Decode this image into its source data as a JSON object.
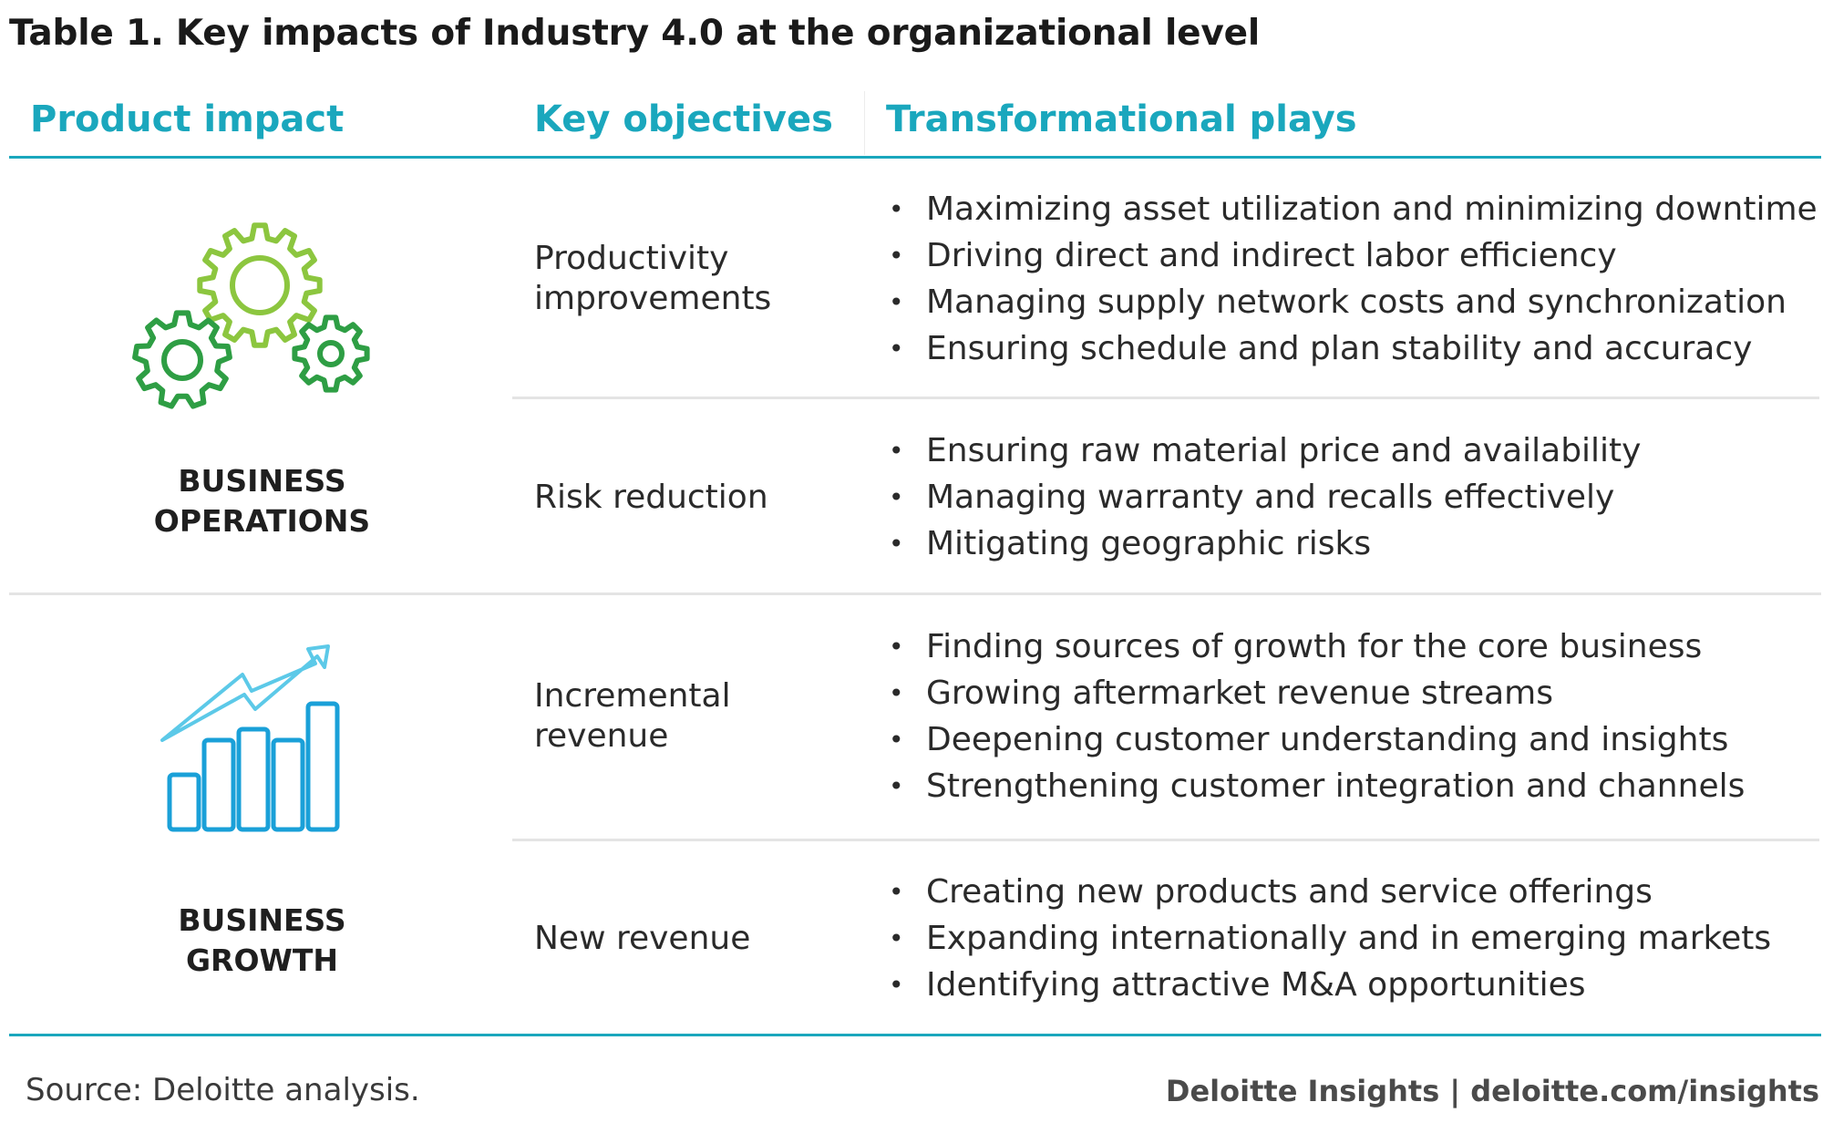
{
  "title": "Table 1. Key impacts of Industry 4.0 at the organizational level",
  "headers": {
    "product_impact": "Product impact",
    "key_objectives": "Key objectives",
    "transformational_plays": "Transformational plays"
  },
  "sections": [
    {
      "label_line1": "BUSINESS",
      "label_line2": "OPERATIONS",
      "icon": "gears-icon",
      "rows": [
        {
          "objective_line1": "Productivity",
          "objective_line2": "improvements",
          "plays": [
            "Maximizing asset utilization and minimizing downtime",
            "Driving direct and indirect labor efficiency",
            "Managing supply network costs and synchronization",
            "Ensuring schedule and plan stability and accuracy"
          ]
        },
        {
          "objective_line1": "Risk reduction",
          "plays": [
            "Ensuring raw material price and availability",
            "Managing warranty and recalls effectively",
            "Mitigating geographic risks"
          ]
        }
      ]
    },
    {
      "label_line1": "BUSINESS",
      "label_line2": "GROWTH",
      "icon": "growth-chart-icon",
      "rows": [
        {
          "objective_line1": "Incremental",
          "objective_line2": "revenue",
          "plays": [
            "Finding sources of growth for the core business",
            "Growing aftermarket revenue streams",
            "Deepening customer understanding and insights",
            "Strengthening customer integration and  channels"
          ]
        },
        {
          "objective_line1": "New revenue",
          "plays": [
            "Creating new products and service offerings",
            "Expanding internationally and in emerging markets",
            "Identifying attractive M&A opportunities"
          ]
        }
      ]
    }
  ],
  "footer": {
    "source": "Source: Deloitte analysis.",
    "brand": "Deloitte Insights | deloitte.com/insights"
  },
  "colors": {
    "accent_teal": "#1aa7bd",
    "gear_light_green": "#8cc63f",
    "gear_dark_green": "#2e9e44",
    "chart_blue": "#1aa0d8",
    "arrow_light_blue": "#5cc9e8"
  }
}
